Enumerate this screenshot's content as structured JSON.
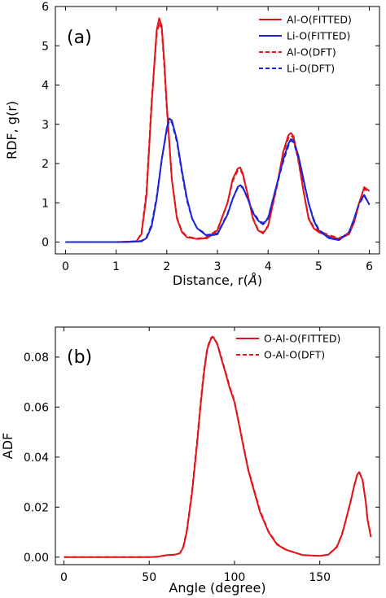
{
  "colors": {
    "al": "#e0151b",
    "li": "#1a24d6"
  },
  "chart_data": [
    {
      "panel_label": "(a)",
      "type": "line",
      "xlabel_pre": "Distance, r(",
      "xlabel_unit": "Å",
      "xlabel_post": ")",
      "ylabel": "RDF, g(r)",
      "xlim": [
        -0.2,
        6.2
      ],
      "ylim": [
        -0.3,
        6
      ],
      "xticks": [
        0,
        1,
        2,
        3,
        4,
        5,
        6
      ],
      "yticks": [
        0,
        1,
        2,
        3,
        4,
        5,
        6
      ],
      "legend_position": "top-right",
      "series": [
        {
          "name": "Al-O(FITTED)",
          "color": "al",
          "dash": "solid",
          "x": [
            0,
            1.0,
            1.4,
            1.5,
            1.6,
            1.7,
            1.8,
            1.85,
            1.9,
            1.95,
            2.0,
            2.1,
            2.2,
            2.3,
            2.4,
            2.6,
            2.8,
            3.0,
            3.2,
            3.3,
            3.4,
            3.45,
            3.5,
            3.6,
            3.7,
            3.8,
            3.9,
            4.0,
            4.2,
            4.3,
            4.4,
            4.45,
            4.5,
            4.6,
            4.7,
            4.8,
            4.9,
            5.0,
            5.2,
            5.4,
            5.6,
            5.7,
            5.8,
            5.9,
            6.0
          ],
          "y": [
            0,
            0,
            0.02,
            0.2,
            1.2,
            3.5,
            5.4,
            5.7,
            5.5,
            4.6,
            3.5,
            1.6,
            0.6,
            0.25,
            0.12,
            0.08,
            0.1,
            0.3,
            1.0,
            1.6,
            1.87,
            1.9,
            1.75,
            1.2,
            0.6,
            0.3,
            0.22,
            0.4,
            1.6,
            2.3,
            2.72,
            2.78,
            2.7,
            2.1,
            1.3,
            0.6,
            0.35,
            0.25,
            0.15,
            0.08,
            0.2,
            0.5,
            1.0,
            1.4,
            1.3
          ]
        },
        {
          "name": "Li-O(FITTED)",
          "color": "li",
          "dash": "solid",
          "x": [
            0,
            1.2,
            1.5,
            1.6,
            1.7,
            1.8,
            1.9,
            2.0,
            2.05,
            2.1,
            2.2,
            2.3,
            2.4,
            2.5,
            2.6,
            2.8,
            3.0,
            3.2,
            3.3,
            3.4,
            3.45,
            3.5,
            3.6,
            3.7,
            3.8,
            3.9,
            4.0,
            4.1,
            4.2,
            4.3,
            4.4,
            4.45,
            4.5,
            4.6,
            4.7,
            4.8,
            4.9,
            5.0,
            5.2,
            5.4,
            5.6,
            5.7,
            5.8,
            5.9,
            6.0
          ],
          "y": [
            0,
            0,
            0.02,
            0.1,
            0.4,
            1.1,
            2.1,
            2.9,
            3.15,
            3.1,
            2.6,
            1.8,
            1.1,
            0.6,
            0.35,
            0.15,
            0.2,
            0.7,
            1.1,
            1.4,
            1.45,
            1.4,
            1.1,
            0.75,
            0.55,
            0.45,
            0.6,
            1.1,
            1.6,
            2.1,
            2.5,
            2.62,
            2.6,
            2.2,
            1.6,
            1.0,
            0.55,
            0.3,
            0.1,
            0.05,
            0.25,
            0.6,
            1.0,
            1.2,
            0.95
          ]
        },
        {
          "name": "Al-O(DFT)",
          "color": "al",
          "dash": "dashed",
          "x": [
            0,
            1.0,
            1.4,
            1.5,
            1.6,
            1.7,
            1.8,
            1.85,
            1.9,
            1.95,
            2.0,
            2.1,
            2.2,
            2.3,
            2.4,
            2.6,
            2.8,
            3.0,
            3.2,
            3.3,
            3.4,
            3.45,
            3.5,
            3.6,
            3.7,
            3.8,
            3.9,
            4.0,
            4.2,
            4.3,
            4.4,
            4.45,
            4.5,
            4.6,
            4.7,
            4.8,
            4.9,
            5.0,
            5.2,
            5.4,
            5.6,
            5.7,
            5.8,
            5.9,
            6.0
          ],
          "y": [
            0,
            0,
            0.02,
            0.22,
            1.3,
            3.6,
            5.3,
            5.6,
            5.4,
            4.5,
            3.4,
            1.6,
            0.62,
            0.27,
            0.14,
            0.09,
            0.12,
            0.32,
            1.0,
            1.55,
            1.82,
            1.85,
            1.72,
            1.2,
            0.62,
            0.32,
            0.24,
            0.42,
            1.55,
            2.25,
            2.65,
            2.72,
            2.65,
            2.05,
            1.3,
            0.62,
            0.38,
            0.28,
            0.18,
            0.1,
            0.22,
            0.52,
            1.0,
            1.35,
            1.28
          ]
        },
        {
          "name": "Li-O(DFT)",
          "color": "li",
          "dash": "dashed",
          "x": [
            0,
            1.2,
            1.5,
            1.6,
            1.7,
            1.8,
            1.9,
            2.0,
            2.05,
            2.1,
            2.2,
            2.3,
            2.4,
            2.5,
            2.6,
            2.8,
            3.0,
            3.2,
            3.3,
            3.4,
            3.45,
            3.5,
            3.6,
            3.7,
            3.8,
            3.9,
            4.0,
            4.1,
            4.2,
            4.3,
            4.4,
            4.45,
            4.5,
            4.6,
            4.7,
            4.8,
            4.9,
            5.0,
            5.2,
            5.4,
            5.6,
            5.7,
            5.8,
            5.9,
            6.0
          ],
          "y": [
            0,
            0,
            0.03,
            0.12,
            0.45,
            1.15,
            2.1,
            2.85,
            3.1,
            3.05,
            2.55,
            1.75,
            1.05,
            0.6,
            0.35,
            0.18,
            0.22,
            0.72,
            1.1,
            1.38,
            1.42,
            1.38,
            1.1,
            0.78,
            0.58,
            0.48,
            0.62,
            1.1,
            1.58,
            2.05,
            2.45,
            2.58,
            2.55,
            2.15,
            1.55,
            1.0,
            0.58,
            0.32,
            0.12,
            0.06,
            0.26,
            0.58,
            0.98,
            1.18,
            0.95
          ]
        }
      ]
    },
    {
      "panel_label": "(b)",
      "type": "line",
      "xlabel": "Angle (degree)",
      "ylabel": "ADF",
      "xlim": [
        -5,
        185
      ],
      "ylim": [
        -0.003,
        0.092
      ],
      "xticks": [
        0,
        50,
        100,
        150
      ],
      "yticks": [
        0.0,
        0.02,
        0.04,
        0.06,
        0.08
      ],
      "ytick_labels": [
        "0.00",
        "0.02",
        "0.04",
        "0.06",
        "0.08"
      ],
      "legend_position": "top-right",
      "series": [
        {
          "name": "O-Al-O(FITTED)",
          "color": "al",
          "dash": "solid",
          "x": [
            0,
            50,
            55,
            60,
            65,
            68,
            70,
            72,
            75,
            78,
            80,
            82,
            84,
            86,
            87,
            88,
            90,
            92,
            95,
            97,
            100,
            103,
            105,
            108,
            110,
            115,
            120,
            125,
            130,
            140,
            150,
            155,
            160,
            163,
            165,
            168,
            170,
            172,
            173,
            175,
            177,
            178,
            180
          ],
          "y": [
            0,
            0,
            0.0002,
            0.0008,
            0.001,
            0.0015,
            0.004,
            0.01,
            0.025,
            0.045,
            0.06,
            0.073,
            0.083,
            0.087,
            0.088,
            0.0875,
            0.085,
            0.08,
            0.073,
            0.068,
            0.062,
            0.052,
            0.045,
            0.035,
            0.03,
            0.018,
            0.01,
            0.005,
            0.003,
            0.0008,
            0.0005,
            0.001,
            0.004,
            0.009,
            0.014,
            0.022,
            0.028,
            0.033,
            0.034,
            0.031,
            0.022,
            0.015,
            0.008
          ]
        },
        {
          "name": "O-Al-O(DFT)",
          "color": "al",
          "dash": "dashed",
          "x": [
            0,
            50,
            55,
            60,
            65,
            68,
            70,
            72,
            75,
            78,
            80,
            82,
            84,
            86,
            87,
            88,
            90,
            92,
            95,
            97,
            100,
            103,
            105,
            108,
            110,
            115,
            120,
            125,
            130,
            140,
            150,
            155,
            160,
            163,
            165,
            168,
            170,
            172,
            173,
            175,
            177,
            178,
            180
          ],
          "y": [
            0,
            0,
            0.0002,
            0.0007,
            0.001,
            0.0016,
            0.0042,
            0.0105,
            0.026,
            0.046,
            0.061,
            0.074,
            0.0835,
            0.0875,
            0.0882,
            0.0878,
            0.0852,
            0.0805,
            0.0735,
            0.0685,
            0.0625,
            0.0525,
            0.0455,
            0.0355,
            0.0305,
            0.0185,
            0.0102,
            0.0052,
            0.0031,
            0.0008,
            0.0005,
            0.001,
            0.0042,
            0.0092,
            0.0142,
            0.0222,
            0.0282,
            0.0332,
            0.0342,
            0.0312,
            0.0222,
            0.0152,
            0.0082
          ]
        }
      ]
    }
  ]
}
